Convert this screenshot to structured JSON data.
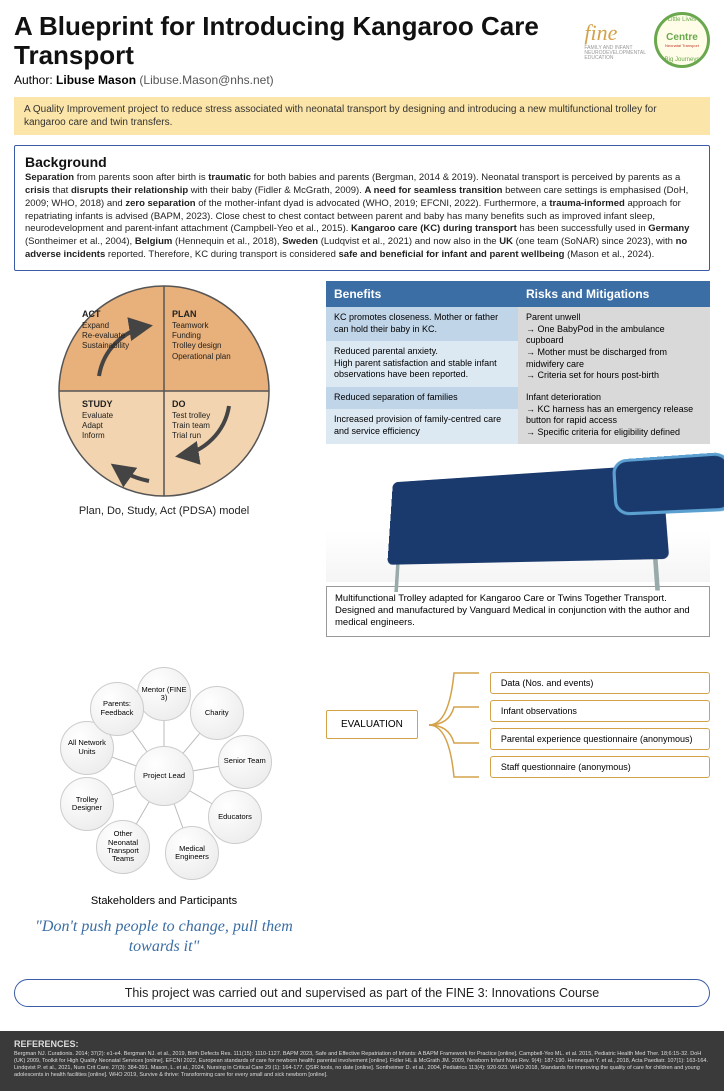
{
  "title": "A Blueprint for Introducing Kangaroo Care Transport",
  "author_label": "Author:",
  "author_name": "Libuse Mason",
  "author_email": "(Libuse.Mason@nhs.net)",
  "logos": {
    "fine": "fine",
    "fine_sub": "FAMILY AND INFANT\nNEURODEVELOPMENTAL\nEDUCATION",
    "circle_top": "Little Lives",
    "circle_mid": "Centre",
    "circle_sub": "Neonatal Transport",
    "circle_bot": "Big Journeys"
  },
  "summary": "A Quality Improvement project to reduce stress associated with neonatal transport by designing and introducing a new multifunctional trolley for kangaroo care and twin transfers.",
  "background": {
    "heading": "Background",
    "html": "<b>Separation</b> from parents soon after birth is <b>traumatic</b> for both babies and parents (Bergman, 2014 & 2019). Neonatal transport is perceived by parents as a <b>crisis</b> that <b>disrupts their relationship</b> with their baby (Fidler & McGrath, 2009). <b>A need for seamless transition</b> between care settings is emphasised (DoH, 2009; WHO, 2018) and <b>zero separation</b> of the mother-infant dyad is advocated (WHO, 2019; EFCNI, 2022). Furthermore, a <b>trauma-informed</b> approach for repatriating infants is advised (BAPM, 2023). Close chest to chest contact between parent and baby has many benefits such as improved infant sleep, neurodevelopment and parent-infant attachment (Campbell-Yeo et al., 2015). <b>Kangaroo care (KC) during transport</b> has been successfully used in <b>Germany</b> (Sontheimer et al., 2004), <b>Belgium</b> (Hennequin et al., 2018), <b>Sweden</b> (Ludqvist et al., 2021) and now also in the <b>UK</b> (one team (SoNAR) since 2023), with <b>no adverse incidents</b> reported. Therefore, KC during transport is considered <b>safe and beneficial for infant and parent wellbeing</b> (Mason et al., 2024)."
  },
  "pdsa": {
    "act": {
      "title": "ACT",
      "items": "Expand\nRe-evaluate\nSustainability"
    },
    "plan": {
      "title": "PLAN",
      "items": "Teamwork\nFunding\nTrolley design\nOperational plan"
    },
    "study": {
      "title": "STUDY",
      "items": "Evaluate\nAdapt\nInform"
    },
    "do": {
      "title": "DO",
      "items": "Test trolley\nTrain team\nTrial run"
    },
    "caption": "Plan, Do, Study, Act (PDSA) model",
    "colors": {
      "top": "#e8b07a",
      "bottom": "#f2d4b0",
      "line": "#555"
    }
  },
  "benefits_risks": {
    "headers": [
      "Benefits",
      "Risks and Mitigations"
    ],
    "rows": [
      {
        "benefit": "KC promotes closeness. Mother or father can hold their baby in KC.",
        "risk": "Parent unwell\n→ One BabyPod in the ambulance cupboard\n→ Mother must be discharged from midwifery care\n→ Criteria set for hours post-birth"
      },
      {
        "benefit": "Reduced parental anxiety.\nHigh parent satisfaction and stable infant observations have been reported.",
        "risk": ""
      },
      {
        "benefit": "Reduced separation of families",
        "risk": "Infant deterioration\n→ KC harness has an emergency release button for rapid access\n→ Specific criteria for eligibility defined"
      },
      {
        "benefit": "Increased provision of family-centred care and service efficiency",
        "risk": ""
      }
    ]
  },
  "trolley_caption": "Multifunctional Trolley adapted for Kangaroo Care or Twins Together Transport. Designed and manufactured by Vanguard Medical in conjunction with the author and medical engineers.",
  "stakeholders": {
    "center": "Project Lead",
    "nodes": [
      {
        "label": "Mentor (FINE 3)",
        "angle": -90
      },
      {
        "label": "Charity",
        "angle": -50
      },
      {
        "label": "Senior Team",
        "angle": -10
      },
      {
        "label": "Educators",
        "angle": 30
      },
      {
        "label": "Medical Engineers",
        "angle": 70
      },
      {
        "label": "Other Neonatal Transport Teams",
        "angle": 120
      },
      {
        "label": "Trolley Designer",
        "angle": 160
      },
      {
        "label": "All Network Units",
        "angle": 200
      },
      {
        "label": "Parents: Feedback",
        "angle": 235
      }
    ],
    "caption": "Stakeholders and Participants"
  },
  "quote": "\"Don't push people to change, pull them towards it\"",
  "evaluation": {
    "center": "EVALUATION",
    "items": [
      "Data (Nos. and events)",
      "Infant observations",
      "Parental experience questionnaire (anonymous)",
      "Staff questionnaire (anonymous)"
    ],
    "border_color": "#d4a24a"
  },
  "course_line": "This project was carried out and supervised as part of the FINE 3: Innovations Course",
  "references": {
    "heading": "REFERENCES:",
    "text": "Bergman NJ. Curationis. 2014; 37(2): e1-e4. Bergman NJ. et al., 2019, Birth Defects Res. 111(15): 1110-1127. BAPM 2023, Safe and Effective Repatriation of Infants: A BAPM Framework for Practice [online]. Campbell-Yeo ML. et al. 2015, Pediatric Health Med Ther. 18;6:15-32. DoH (UK) 2009, Toolkit for High Quality Neonatal Services [online]. EFCNI 2022, European standards of care for newborn health: parental involvement [online]. Fidler HL & McGrath JM. 2009, Newborn Infant Nurs Rev. 9(4): 187-190. Hennequin Y. et al., 2018, Acta Paediatr. 107(1): 163-164. Lindqvist P. et al., 2021, Nurs Crit Care. 27(3): 384-391. Mason, L. et al., 2024, Nursing in Critical Care 29 (1): 164-177. QSIR tools, no date [online]. Sontheimer D. et al., 2004, Pediatrics 113(4): 920-923. WHO 2018, Standards for improving the quality of care for children and young adolescents in health facilities [online]. WHO 2019, Survive & thrive: Transforming care for every small and sick newborn [online]."
  },
  "colors": {
    "blue": "#3b6ea5",
    "border_blue": "#3b5ba5",
    "yellow": "#fce5a8",
    "gold": "#d4a24a"
  }
}
